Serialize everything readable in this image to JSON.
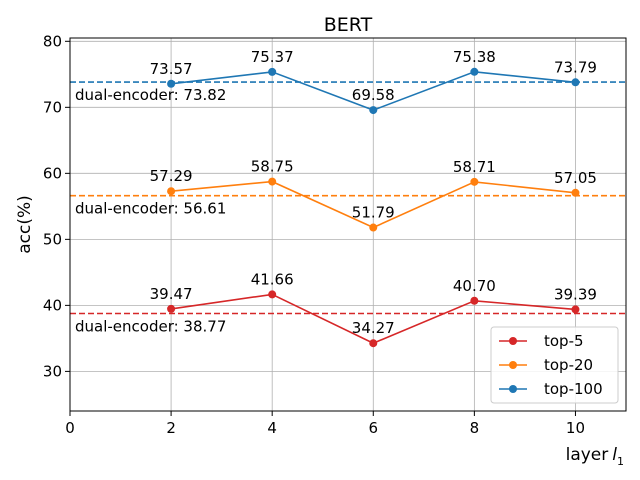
{
  "chart_data": {
    "type": "line",
    "title": "BERT",
    "xlabel": "layer",
    "xlabel_sub": "1",
    "ylabel": "acc(%)",
    "xlim": [
      0,
      11
    ],
    "ylim": [
      24,
      80.5
    ],
    "xticks": [
      0,
      2,
      4,
      6,
      8,
      10
    ],
    "yticks": [
      30,
      40,
      50,
      60,
      70,
      80
    ],
    "grid": true,
    "legend_position": "bottom-right",
    "x": [
      2,
      4,
      6,
      8,
      10
    ],
    "series": [
      {
        "name": "top-5",
        "color": "#d62728",
        "values": [
          39.47,
          41.66,
          34.27,
          40.7,
          39.39
        ],
        "labels": [
          "39.47",
          "41.66",
          "34.27",
          "40.70",
          "39.39"
        ],
        "baseline": 38.77,
        "baseline_label": "dual-encoder: 38.77"
      },
      {
        "name": "top-20",
        "color": "#ff7f0e",
        "values": [
          57.29,
          58.75,
          51.79,
          58.71,
          57.05
        ],
        "labels": [
          "57.29",
          "58.75",
          "51.79",
          "58.71",
          "57.05"
        ],
        "baseline": 56.61,
        "baseline_label": "dual-encoder: 56.61"
      },
      {
        "name": "top-100",
        "color": "#1f77b4",
        "values": [
          73.57,
          75.37,
          69.58,
          75.38,
          73.79
        ],
        "labels": [
          "73.57",
          "75.37",
          "69.58",
          "75.38",
          "73.79"
        ],
        "baseline": 73.82,
        "baseline_label": "dual-encoder: 73.82"
      }
    ]
  }
}
